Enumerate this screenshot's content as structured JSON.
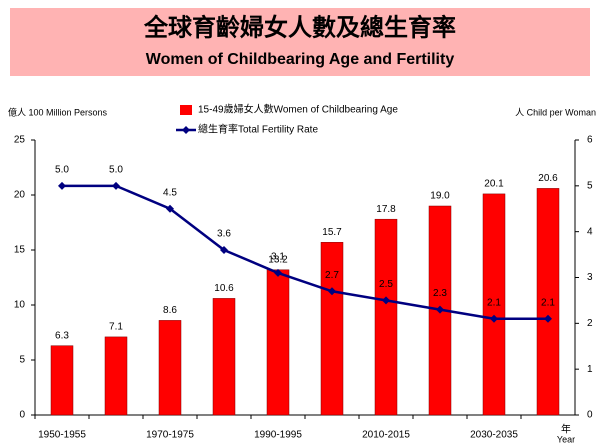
{
  "chart_data": {
    "type": "bar_line",
    "title": "全球育齡婦女人數及總生育率",
    "subtitle": "Women of Childbearing Age and Fertility",
    "y_label": "億人 100 Million Persons",
    "y2_label": "人  Child per Woman",
    "x_label": "年",
    "x_label_en": "Year",
    "categories": [
      "1950-1955",
      null,
      "1970-1975",
      null,
      "1990-1995",
      null,
      "2010-2015",
      null,
      "2030-2035",
      null
    ],
    "series": [
      {
        "name": "15-49歲婦女人數Women of Childbearing Age",
        "kind": "bar",
        "color": "#ff0000",
        "values": [
          6.3,
          7.1,
          8.6,
          10.6,
          13.2,
          15.7,
          17.8,
          19,
          20.1,
          20.6
        ],
        "value_labels": [
          "6.3",
          "7.1",
          "8.6",
          "10.6",
          "13.2",
          "15.7",
          "17.8",
          "19.0",
          "20.1",
          "20.6"
        ]
      },
      {
        "name": "總生育率Total Fertility Rate",
        "kind": "line",
        "axis": "y2",
        "color": "#000080",
        "values": [
          5,
          5,
          4.5,
          3.6,
          3.1,
          2.7,
          2.5,
          2.3,
          2.1,
          2.1
        ],
        "value_labels": [
          "5.0",
          "5.0",
          "4.5",
          "3.6",
          "3.1",
          "2.7",
          "2.5",
          "2.3",
          "2.1",
          "2.1"
        ]
      }
    ],
    "ylim": [
      0,
      25
    ],
    "yticks": [
      0,
      5,
      10,
      15,
      20,
      25
    ],
    "y2lim": [
      0,
      6
    ],
    "y2ticks": [
      0,
      1,
      2,
      3,
      4,
      5,
      6
    ],
    "grid": false
  }
}
